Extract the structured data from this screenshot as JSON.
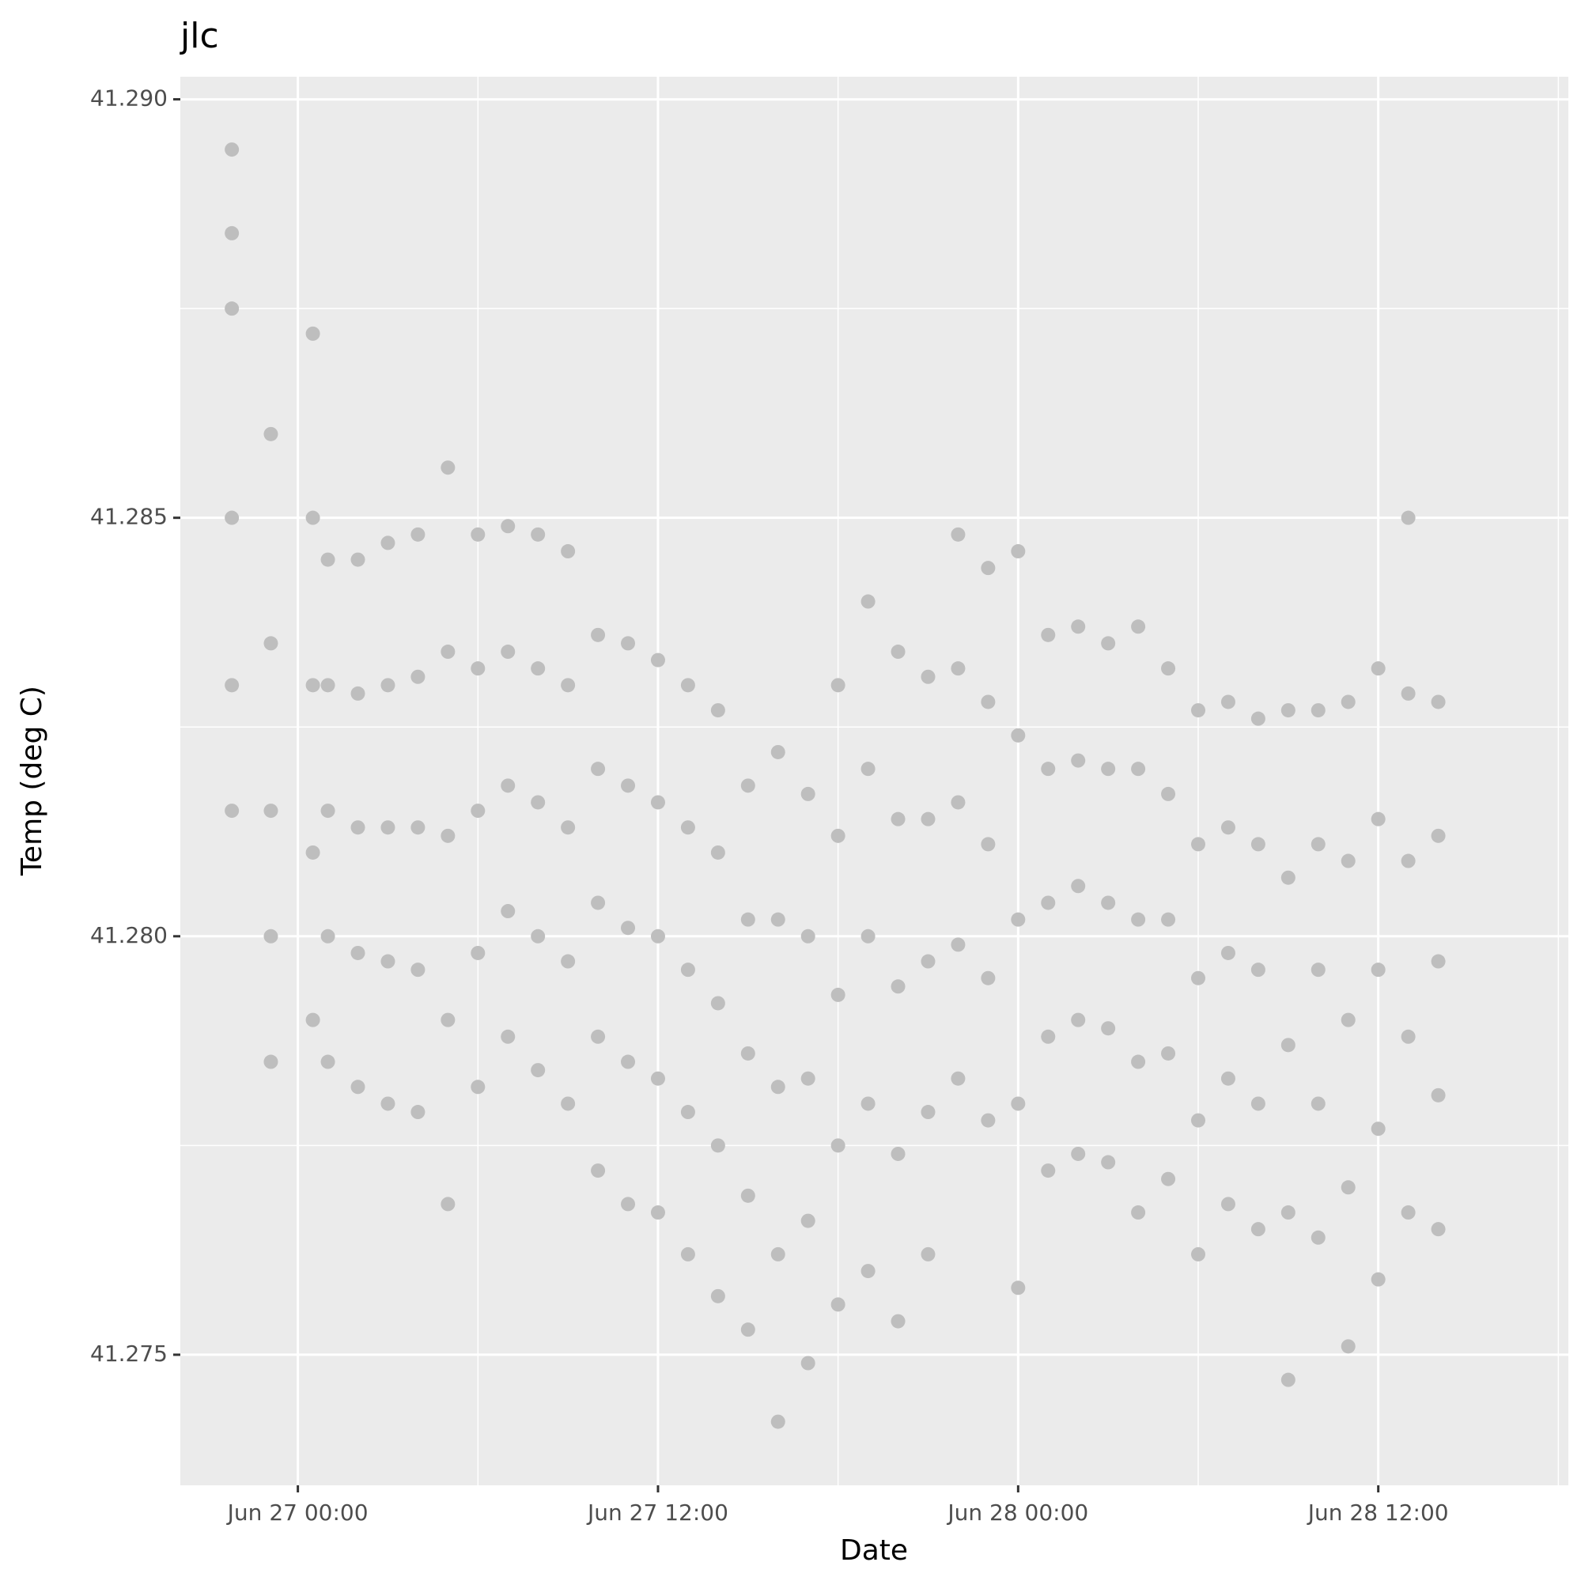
{
  "chart_data": {
    "type": "scatter",
    "title": "jlc",
    "xlabel": "Date",
    "ylabel": "Temp (deg C)",
    "color": "#bebebe",
    "grid": true,
    "xlim": [
      "Jun 26 20:05",
      "Jun 28 18:20"
    ],
    "xticks": [
      "Jun 27 00:00",
      "Jun 27 12:00",
      "Jun 28 00:00",
      "Jun 28 12:00"
    ],
    "ylim": [
      41.27344,
      41.29027
    ],
    "yticks": [
      {
        "value": 41.275,
        "label": "41.275"
      },
      {
        "value": 41.28,
        "label": "41.280"
      },
      {
        "value": 41.285,
        "label": "41.285"
      },
      {
        "value": 41.29,
        "label": "41.290"
      }
    ],
    "x": [
      "Jun 26 21:48",
      "Jun 26 21:48",
      "Jun 26 21:48",
      "Jun 26 21:48",
      "Jun 26 21:48",
      "Jun 26 21:48",
      "Jun 26 23:06",
      "Jun 26 23:06",
      "Jun 26 23:06",
      "Jun 26 23:06",
      "Jun 26 23:06",
      "Jun 27 00:30",
      "Jun 27 00:30",
      "Jun 27 00:30",
      "Jun 27 00:30",
      "Jun 27 00:30",
      "Jun 27 01:00",
      "Jun 27 01:00",
      "Jun 27 01:00",
      "Jun 27 01:00",
      "Jun 27 01:00",
      "Jun 27 02:00",
      "Jun 27 02:00",
      "Jun 27 02:00",
      "Jun 27 02:00",
      "Jun 27 02:00",
      "Jun 27 03:00",
      "Jun 27 03:00",
      "Jun 27 03:00",
      "Jun 27 03:00",
      "Jun 27 03:00",
      "Jun 27 04:00",
      "Jun 27 04:00",
      "Jun 27 04:00",
      "Jun 27 04:00",
      "Jun 27 04:00",
      "Jun 27 05:00",
      "Jun 27 05:00",
      "Jun 27 05:00",
      "Jun 27 05:00",
      "Jun 27 05:00",
      "Jun 27 06:00",
      "Jun 27 06:00",
      "Jun 27 06:00",
      "Jun 27 06:00",
      "Jun 27 06:00",
      "Jun 27 07:00",
      "Jun 27 07:00",
      "Jun 27 07:00",
      "Jun 27 07:00",
      "Jun 27 07:00",
      "Jun 27 08:00",
      "Jun 27 08:00",
      "Jun 27 08:00",
      "Jun 27 08:00",
      "Jun 27 08:00",
      "Jun 27 09:00",
      "Jun 27 09:00",
      "Jun 27 09:00",
      "Jun 27 09:00",
      "Jun 27 09:00",
      "Jun 27 10:00",
      "Jun 27 10:00",
      "Jun 27 10:00",
      "Jun 27 10:00",
      "Jun 27 10:00",
      "Jun 27 11:00",
      "Jun 27 11:00",
      "Jun 27 11:00",
      "Jun 27 11:00",
      "Jun 27 11:00",
      "Jun 27 12:00",
      "Jun 27 12:00",
      "Jun 27 12:00",
      "Jun 27 12:00",
      "Jun 27 12:00",
      "Jun 27 13:00",
      "Jun 27 13:00",
      "Jun 27 13:00",
      "Jun 27 13:00",
      "Jun 27 13:00",
      "Jun 27 14:00",
      "Jun 27 14:00",
      "Jun 27 14:00",
      "Jun 27 14:00",
      "Jun 27 14:00",
      "Jun 27 15:00",
      "Jun 27 15:00",
      "Jun 27 15:00",
      "Jun 27 15:00",
      "Jun 27 15:00",
      "Jun 27 16:00",
      "Jun 27 16:00",
      "Jun 27 16:00",
      "Jun 27 16:00",
      "Jun 27 16:00",
      "Jun 27 17:00",
      "Jun 27 17:00",
      "Jun 27 17:00",
      "Jun 27 17:00",
      "Jun 27 17:00",
      "Jun 27 18:00",
      "Jun 27 18:00",
      "Jun 27 18:00",
      "Jun 27 18:00",
      "Jun 27 18:00",
      "Jun 27 19:00",
      "Jun 27 19:00",
      "Jun 27 19:00",
      "Jun 27 19:00",
      "Jun 27 19:00",
      "Jun 27 20:00",
      "Jun 27 20:00",
      "Jun 27 20:00",
      "Jun 27 20:00",
      "Jun 27 20:00",
      "Jun 27 21:00",
      "Jun 27 21:00",
      "Jun 27 21:00",
      "Jun 27 21:00",
      "Jun 27 21:00",
      "Jun 27 22:00",
      "Jun 27 22:00",
      "Jun 27 22:00",
      "Jun 27 22:00",
      "Jun 27 22:00",
      "Jun 27 23:00",
      "Jun 27 23:00",
      "Jun 27 23:00",
      "Jun 27 23:00",
      "Jun 27 23:00",
      "Jun 28 00:00",
      "Jun 28 00:00",
      "Jun 28 00:00",
      "Jun 28 00:00",
      "Jun 28 00:00",
      "Jun 28 01:00",
      "Jun 28 01:00",
      "Jun 28 01:00",
      "Jun 28 01:00",
      "Jun 28 01:00",
      "Jun 28 02:00",
      "Jun 28 02:00",
      "Jun 28 02:00",
      "Jun 28 02:00",
      "Jun 28 02:00",
      "Jun 28 03:00",
      "Jun 28 03:00",
      "Jun 28 03:00",
      "Jun 28 03:00",
      "Jun 28 03:00",
      "Jun 28 04:00",
      "Jun 28 04:00",
      "Jun 28 04:00",
      "Jun 28 04:00",
      "Jun 28 04:00",
      "Jun 28 05:00",
      "Jun 28 05:00",
      "Jun 28 05:00",
      "Jun 28 05:00",
      "Jun 28 05:00",
      "Jun 28 06:00",
      "Jun 28 06:00",
      "Jun 28 06:00",
      "Jun 28 06:00",
      "Jun 28 06:00",
      "Jun 28 07:00",
      "Jun 28 07:00",
      "Jun 28 07:00",
      "Jun 28 07:00",
      "Jun 28 07:00",
      "Jun 28 08:00",
      "Jun 28 08:00",
      "Jun 28 08:00",
      "Jun 28 08:00",
      "Jun 28 08:00",
      "Jun 28 09:00",
      "Jun 28 09:00",
      "Jun 28 09:00",
      "Jun 28 09:00",
      "Jun 28 09:00",
      "Jun 28 10:00",
      "Jun 28 10:00",
      "Jun 28 10:00",
      "Jun 28 10:00",
      "Jun 28 10:00",
      "Jun 28 11:00",
      "Jun 28 11:00",
      "Jun 28 11:00",
      "Jun 28 11:00",
      "Jun 28 11:00",
      "Jun 28 12:00",
      "Jun 28 12:00",
      "Jun 28 12:00",
      "Jun 28 12:00",
      "Jun 28 12:00",
      "Jun 28 13:00",
      "Jun 28 13:00",
      "Jun 28 13:00",
      "Jun 28 13:00",
      "Jun 28 13:00",
      "Jun 28 14:00",
      "Jun 28 14:00",
      "Jun 28 14:00",
      "Jun 28 14:00",
      "Jun 28 14:00"
    ],
    "values": [
      41.2815,
      41.283,
      41.285,
      41.2875,
      41.2884,
      41.2894,
      41.2785,
      41.28,
      41.2815,
      41.2835,
      41.286,
      41.279,
      41.281,
      41.283,
      41.285,
      41.2872,
      41.2785,
      41.28,
      41.2815,
      41.283,
      41.2845,
      41.2782,
      41.2798,
      41.2813,
      41.2829,
      41.2845,
      41.278,
      41.2797,
      41.2813,
      41.283,
      41.2847,
      41.2779,
      41.2796,
      41.2813,
      41.2831,
      41.2848,
      41.2768,
      41.279,
      41.2812,
      41.2834,
      41.2856,
      41.2782,
      41.2798,
      41.2815,
      41.2832,
      41.2848,
      41.2788,
      41.2803,
      41.2818,
      41.2834,
      41.2849,
      41.2784,
      41.28,
      41.2816,
      41.2832,
      41.2848,
      41.278,
      41.2797,
      41.2813,
      41.283,
      41.2846,
      41.2772,
      41.2788,
      41.2804,
      41.282,
      41.2836,
      41.2768,
      41.2785,
      41.2801,
      41.2818,
      41.2835,
      41.2767,
      41.2783,
      41.28,
      41.2816,
      41.2833,
      41.2762,
      41.2779,
      41.2796,
      41.2813,
      41.283,
      41.2757,
      41.2775,
      41.2792,
      41.281,
      41.2827,
      41.2753,
      41.2769,
      41.2786,
      41.2802,
      41.2818,
      41.2742,
      41.2762,
      41.2782,
      41.2802,
      41.2822,
      41.2749,
      41.2766,
      41.2783,
      41.28,
      41.2817,
      41.2756,
      41.2775,
      41.2793,
      41.2812,
      41.283,
      41.276,
      41.278,
      41.28,
      41.282,
      41.284,
      41.2754,
      41.2774,
      41.2794,
      41.2814,
      41.2834,
      41.2762,
      41.2779,
      41.2797,
      41.2814,
      41.2831,
      41.2783,
      41.2799,
      41.2816,
      41.2832,
      41.2848,
      41.2778,
      41.2795,
      41.2811,
      41.2828,
      41.2844,
      41.2758,
      41.278,
      41.2802,
      41.2824,
      41.2846,
      41.2772,
      41.2788,
      41.2804,
      41.282,
      41.2836,
      41.2774,
      41.279,
      41.2806,
      41.2821,
      41.2837,
      41.2773,
      41.2789,
      41.2804,
      41.282,
      41.2835,
      41.2767,
      41.2785,
      41.2802,
      41.282,
      41.2837,
      41.2771,
      41.2786,
      41.2802,
      41.2817,
      41.2832,
      41.2762,
      41.2778,
      41.2795,
      41.2811,
      41.2827,
      41.2768,
      41.2783,
      41.2798,
      41.2813,
      41.2828,
      41.2765,
      41.278,
      41.2796,
      41.2811,
      41.2826,
      41.2747,
      41.2767,
      41.2787,
      41.2807,
      41.2827,
      41.2764,
      41.278,
      41.2796,
      41.2811,
      41.2827,
      41.2751,
      41.277,
      41.279,
      41.2809,
      41.2828,
      41.2759,
      41.2777,
      41.2796,
      41.2814,
      41.2832,
      41.2767,
      41.2788,
      41.2809,
      41.2829,
      41.285,
      41.2765,
      41.2781,
      41.2797,
      41.2812,
      41.2828
    ]
  }
}
